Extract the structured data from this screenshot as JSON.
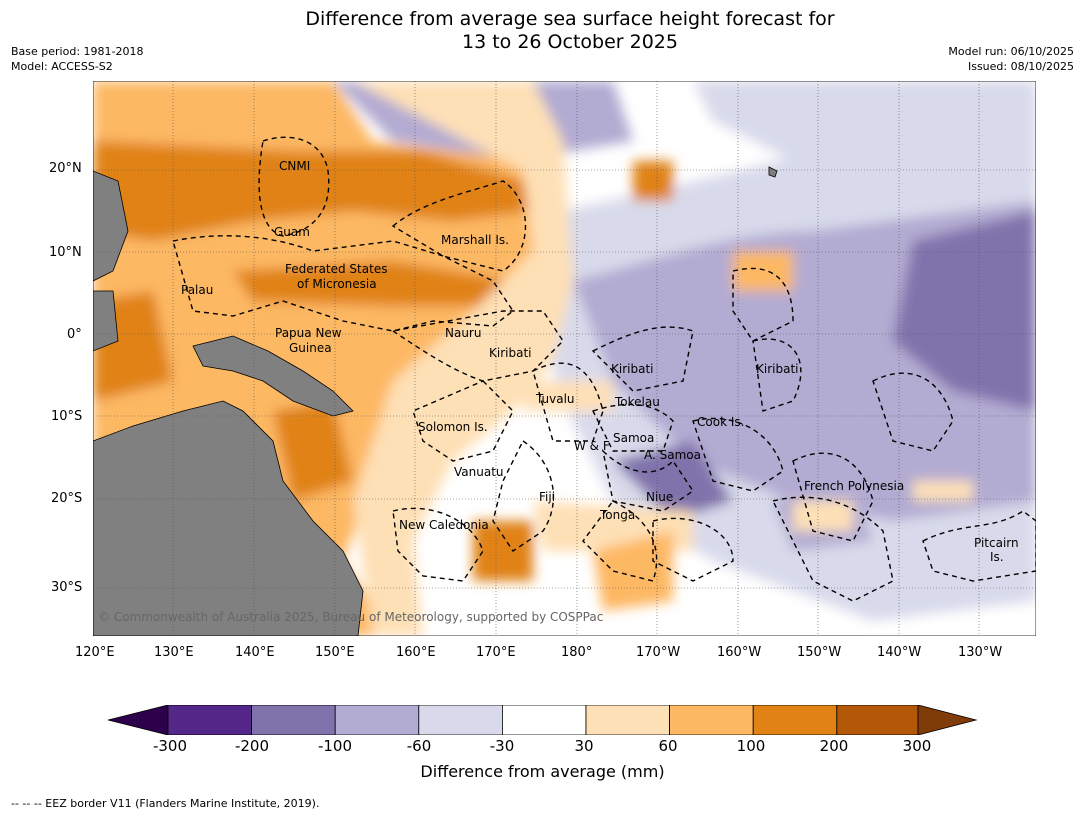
{
  "title": {
    "line1": "Difference from average sea surface height forecast for",
    "line2": "13 to 26 October 2025"
  },
  "meta": {
    "base_period": "Base period: 1981-2018",
    "model": "Model: ACCESS-S2",
    "model_run": "Model run: 06/10/2025",
    "issued": "Issued: 08/10/2025"
  },
  "map": {
    "lon_ticks": [
      "120°E",
      "130°E",
      "140°E",
      "150°E",
      "160°E",
      "170°E",
      "180°",
      "170°W",
      "160°W",
      "150°W",
      "140°W",
      "130°W"
    ],
    "lat_ticks": [
      "20°N",
      "10°N",
      "0°",
      "10°S",
      "20°S",
      "30°S"
    ],
    "labels": {
      "cnmi": "CNMI",
      "guam": "Guam",
      "marshall": "Marshall Is.",
      "fsm1": "Federated States",
      "fsm2": "of Micronesia",
      "palau": "Palau",
      "png1": "Papua New",
      "png2": "Guinea",
      "nauru": "Nauru",
      "kiribati_w": "Kiribati",
      "kiribati_c": "Kiribati",
      "kiribati_e": "Kiribati",
      "tuvalu": "Tuvalu",
      "tokelau": "Tokelau",
      "cook": "Cook Is.",
      "solomon": "Solomon Is.",
      "samoa": "Samoa",
      "wf": "W & F",
      "asamoa": "A. Samoa",
      "vanuatu": "Vanuatu",
      "fiji": "Fiji",
      "niue": "Niue",
      "tonga": "Tonga",
      "french_polynesia": "French Polynesia",
      "newcal": "New Caledonia",
      "pitcairn1": "Pitcairn",
      "pitcairn2": "Is."
    },
    "copyright": "© Commonwealth of Australia 2025, Bureau of Meteorology, supported by COSPPac",
    "colors": {
      "land": "#808080",
      "neg300": "#2d004b",
      "neg200": "#542788",
      "neg100": "#8073ac",
      "neg60": "#b2abd2",
      "neg30": "#d8daeb",
      "neutral": "#ffffff",
      "pos30": "#fee0b6",
      "pos60": "#fdb863",
      "pos100": "#e08214",
      "pos200": "#b35806",
      "pos300": "#7f3b08"
    }
  },
  "colorbar": {
    "ticks": [
      "-300",
      "-200",
      "-100",
      "-60",
      "-30",
      "30",
      "60",
      "100",
      "200",
      "300"
    ],
    "title": "Difference from average (mm)"
  },
  "footnote": "--  --  -- EEZ border V11 (Flanders Marine Institute, 2019)."
}
